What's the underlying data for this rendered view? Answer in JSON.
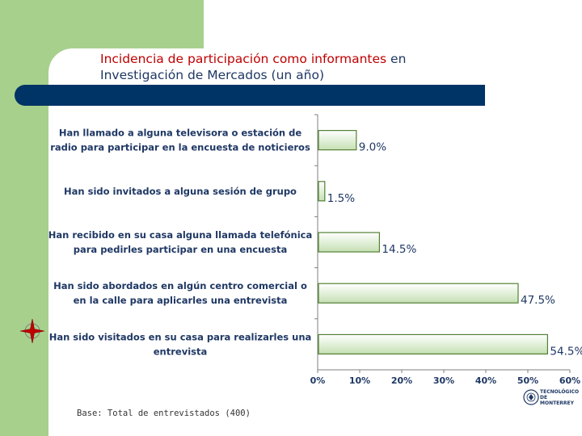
{
  "slide": {
    "title_part1": "Incidencia de participación como informantes",
    "title_part2": "en",
    "title_line2": "Investigación de Mercados (un año)",
    "base_note": "Base: Total de entrevistados (400)",
    "logo_line1": "TECNOLÓGICO",
    "logo_line2": "DE MONTERREY"
  },
  "colors": {
    "title_red": "#c00000",
    "title_navy": "#1f3864",
    "band_green": "#a8d08d",
    "header_bar": "#003366",
    "bar_fill": "#e2f0d9",
    "bar_border": "#538135"
  },
  "icons": [
    "compass-star-icon",
    "university-seal-icon"
  ],
  "chart_data": {
    "type": "bar",
    "orientation": "horizontal",
    "title": "Incidencia de participación como informantes en Investigación de Mercados (un año)",
    "categories": [
      [
        "Han llamado a alguna televisora o estación de",
        "radio para participar en la encuesta de noticieros"
      ],
      [
        "Han sido invitados a alguna sesión de grupo"
      ],
      [
        "Han recibido en su casa alguna llamada telefónica",
        "para pedirles participar en una encuesta"
      ],
      [
        "Han sido abordados en algún centro comercial o",
        "en la calle para aplicarles una entrevista"
      ],
      [
        "Han sido visitados en su casa para realizarles una",
        "entrevista"
      ]
    ],
    "values": [
      9.0,
      1.5,
      14.5,
      47.5,
      54.5
    ],
    "value_labels": [
      "9.0%",
      "1.5%",
      "14.5%",
      "47.5%",
      "54.5%"
    ],
    "xlim": [
      0,
      60
    ],
    "ticks": [
      "0%",
      "10%",
      "20%",
      "30%",
      "40%",
      "50%",
      "60%"
    ],
    "xlabel": "",
    "ylabel": "",
    "grid": false,
    "legend": "none"
  }
}
